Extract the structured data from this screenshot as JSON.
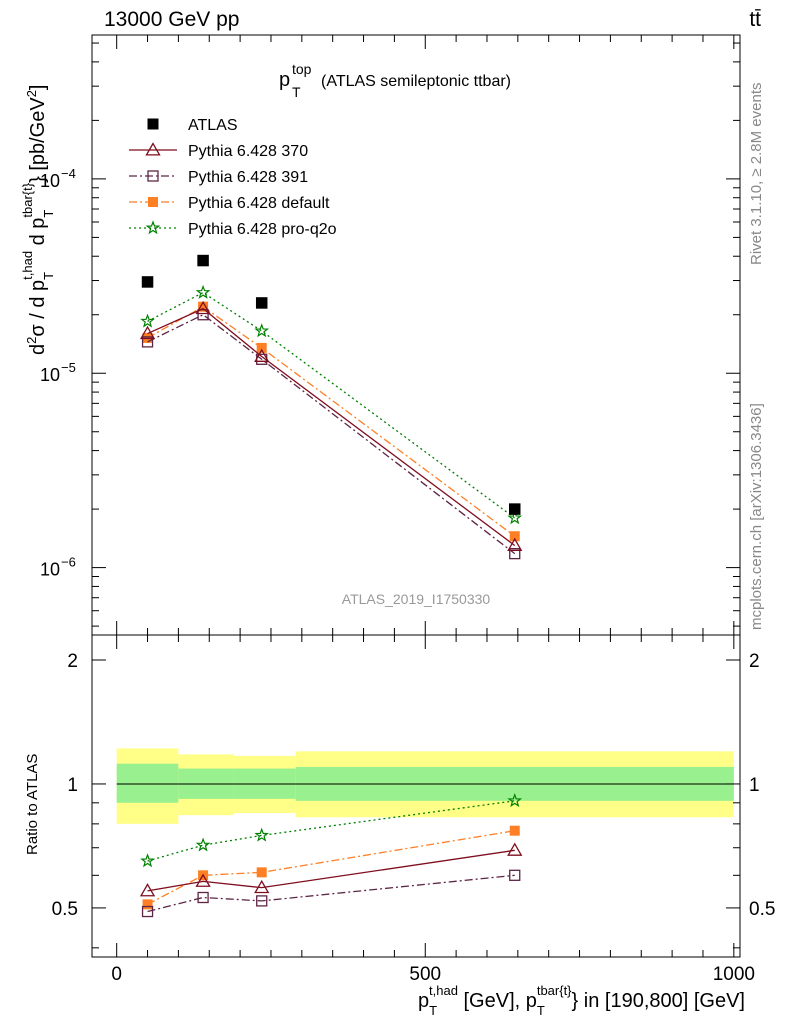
{
  "header": {
    "left": "13000 GeV pp",
    "right": "tt̄"
  },
  "side_text": {
    "rivet": "Rivet 3.1.10, ≥ 2.8M events",
    "mcplots": "mcplots.cern.ch [arXiv:1306.3436]"
  },
  "colors": {
    "atlas": "#000000",
    "p370": "#7f0e1f",
    "p391": "#5c2545",
    "pdefault": "#ff7f24",
    "pq2o": "#008000",
    "band_outer": "#ffff88",
    "band_inner": "#99f08f"
  },
  "chart_data": [
    {
      "type": "scatter",
      "title_main": "p",
      "title_sup": "top",
      "title_sub": "T",
      "title_rest": "(ATLAS semileptonic ttbar)",
      "ylabel": "d²σ / d p_T^{t,had} d p_T^{tbar{t}} [pb/GeV²]",
      "yscale": "log",
      "ylim": [
        4.5e-07,
        0.00055
      ],
      "ytick_labels": [
        {
          "value": 0.0001,
          "mant": "10",
          "exp": "−4"
        },
        {
          "value": 1e-05,
          "mant": "10",
          "exp": "−5"
        },
        {
          "value": 1e-06,
          "mant": "10",
          "exp": "−6"
        }
      ],
      "watermark": "ATLAS_2019_I1750330",
      "legend_position": "top-left",
      "series": [
        {
          "name": "ATLAS",
          "key": "atlas",
          "marker": "square-filled",
          "line": "none",
          "x": [
            50,
            140,
            235,
            645
          ],
          "y": [
            2.95e-05,
            3.8e-05,
            2.3e-05,
            2e-06
          ]
        },
        {
          "name": "Pythia 6.428 370",
          "key": "p370",
          "marker": "triangle-open",
          "line": "solid",
          "x": [
            50,
            140,
            235,
            645
          ],
          "y": [
            1.6e-05,
            2.15e-05,
            1.22e-05,
            1.3e-06
          ]
        },
        {
          "name": "Pythia 6.428 391",
          "key": "p391",
          "marker": "square-open",
          "line": "dashdot",
          "x": [
            50,
            140,
            235,
            645
          ],
          "y": [
            1.45e-05,
            2e-05,
            1.18e-05,
            1.18e-06
          ]
        },
        {
          "name": "Pythia 6.428 default",
          "key": "pdefault",
          "marker": "square-filled",
          "line": "dashdot",
          "x": [
            50,
            140,
            235,
            645
          ],
          "y": [
            1.52e-05,
            2.2e-05,
            1.35e-05,
            1.45e-06
          ]
        },
        {
          "name": "Pythia 6.428 pro-q2o",
          "key": "pq2o",
          "marker": "star-open",
          "line": "dotted",
          "x": [
            50,
            140,
            235,
            645
          ],
          "y": [
            1.85e-05,
            2.6e-05,
            1.65e-05,
            1.8e-06
          ]
        }
      ]
    },
    {
      "type": "line",
      "ylabel": "Ratio to ATLAS",
      "xlabel": "p_T^{t,had} [GeV], p_T^{tbar{t}} in [190,800] [GeV]",
      "xlim": [
        -40,
        1010
      ],
      "ylim": [
        0.38,
        2.3
      ],
      "xtick_labels": [
        "0",
        "500",
        "1000"
      ],
      "ytick_labels": [
        "0.5",
        "1",
        "2"
      ],
      "band_bins": [
        {
          "x0": 0,
          "x1": 100,
          "inner": [
            0.9,
            1.12
          ],
          "outer": [
            0.8,
            1.22
          ]
        },
        {
          "x0": 100,
          "x1": 190,
          "inner": [
            0.92,
            1.09
          ],
          "outer": [
            0.84,
            1.18
          ]
        },
        {
          "x0": 190,
          "x1": 290,
          "inner": [
            0.92,
            1.09
          ],
          "outer": [
            0.85,
            1.17
          ]
        },
        {
          "x0": 290,
          "x1": 1000,
          "inner": [
            0.91,
            1.1
          ],
          "outer": [
            0.83,
            1.2
          ]
        }
      ],
      "series": [
        {
          "name": "Pythia 6.428 370",
          "key": "p370",
          "marker": "triangle-open",
          "line": "solid",
          "x": [
            50,
            140,
            235,
            645
          ],
          "y": [
            0.55,
            0.58,
            0.56,
            0.69
          ]
        },
        {
          "name": "Pythia 6.428 391",
          "key": "p391",
          "marker": "square-open",
          "line": "dashdot",
          "x": [
            50,
            140,
            235,
            645
          ],
          "y": [
            0.49,
            0.53,
            0.52,
            0.6
          ]
        },
        {
          "name": "Pythia 6.428 default",
          "key": "pdefault",
          "marker": "square-filled",
          "line": "dashdot",
          "x": [
            50,
            140,
            235,
            645
          ],
          "y": [
            0.51,
            0.6,
            0.61,
            0.77
          ]
        },
        {
          "name": "Pythia 6.428 pro-q2o",
          "key": "pq2o",
          "marker": "star-open",
          "line": "dotted",
          "x": [
            50,
            140,
            235,
            645
          ],
          "y": [
            0.65,
            0.71,
            0.75,
            0.91
          ]
        }
      ]
    }
  ]
}
